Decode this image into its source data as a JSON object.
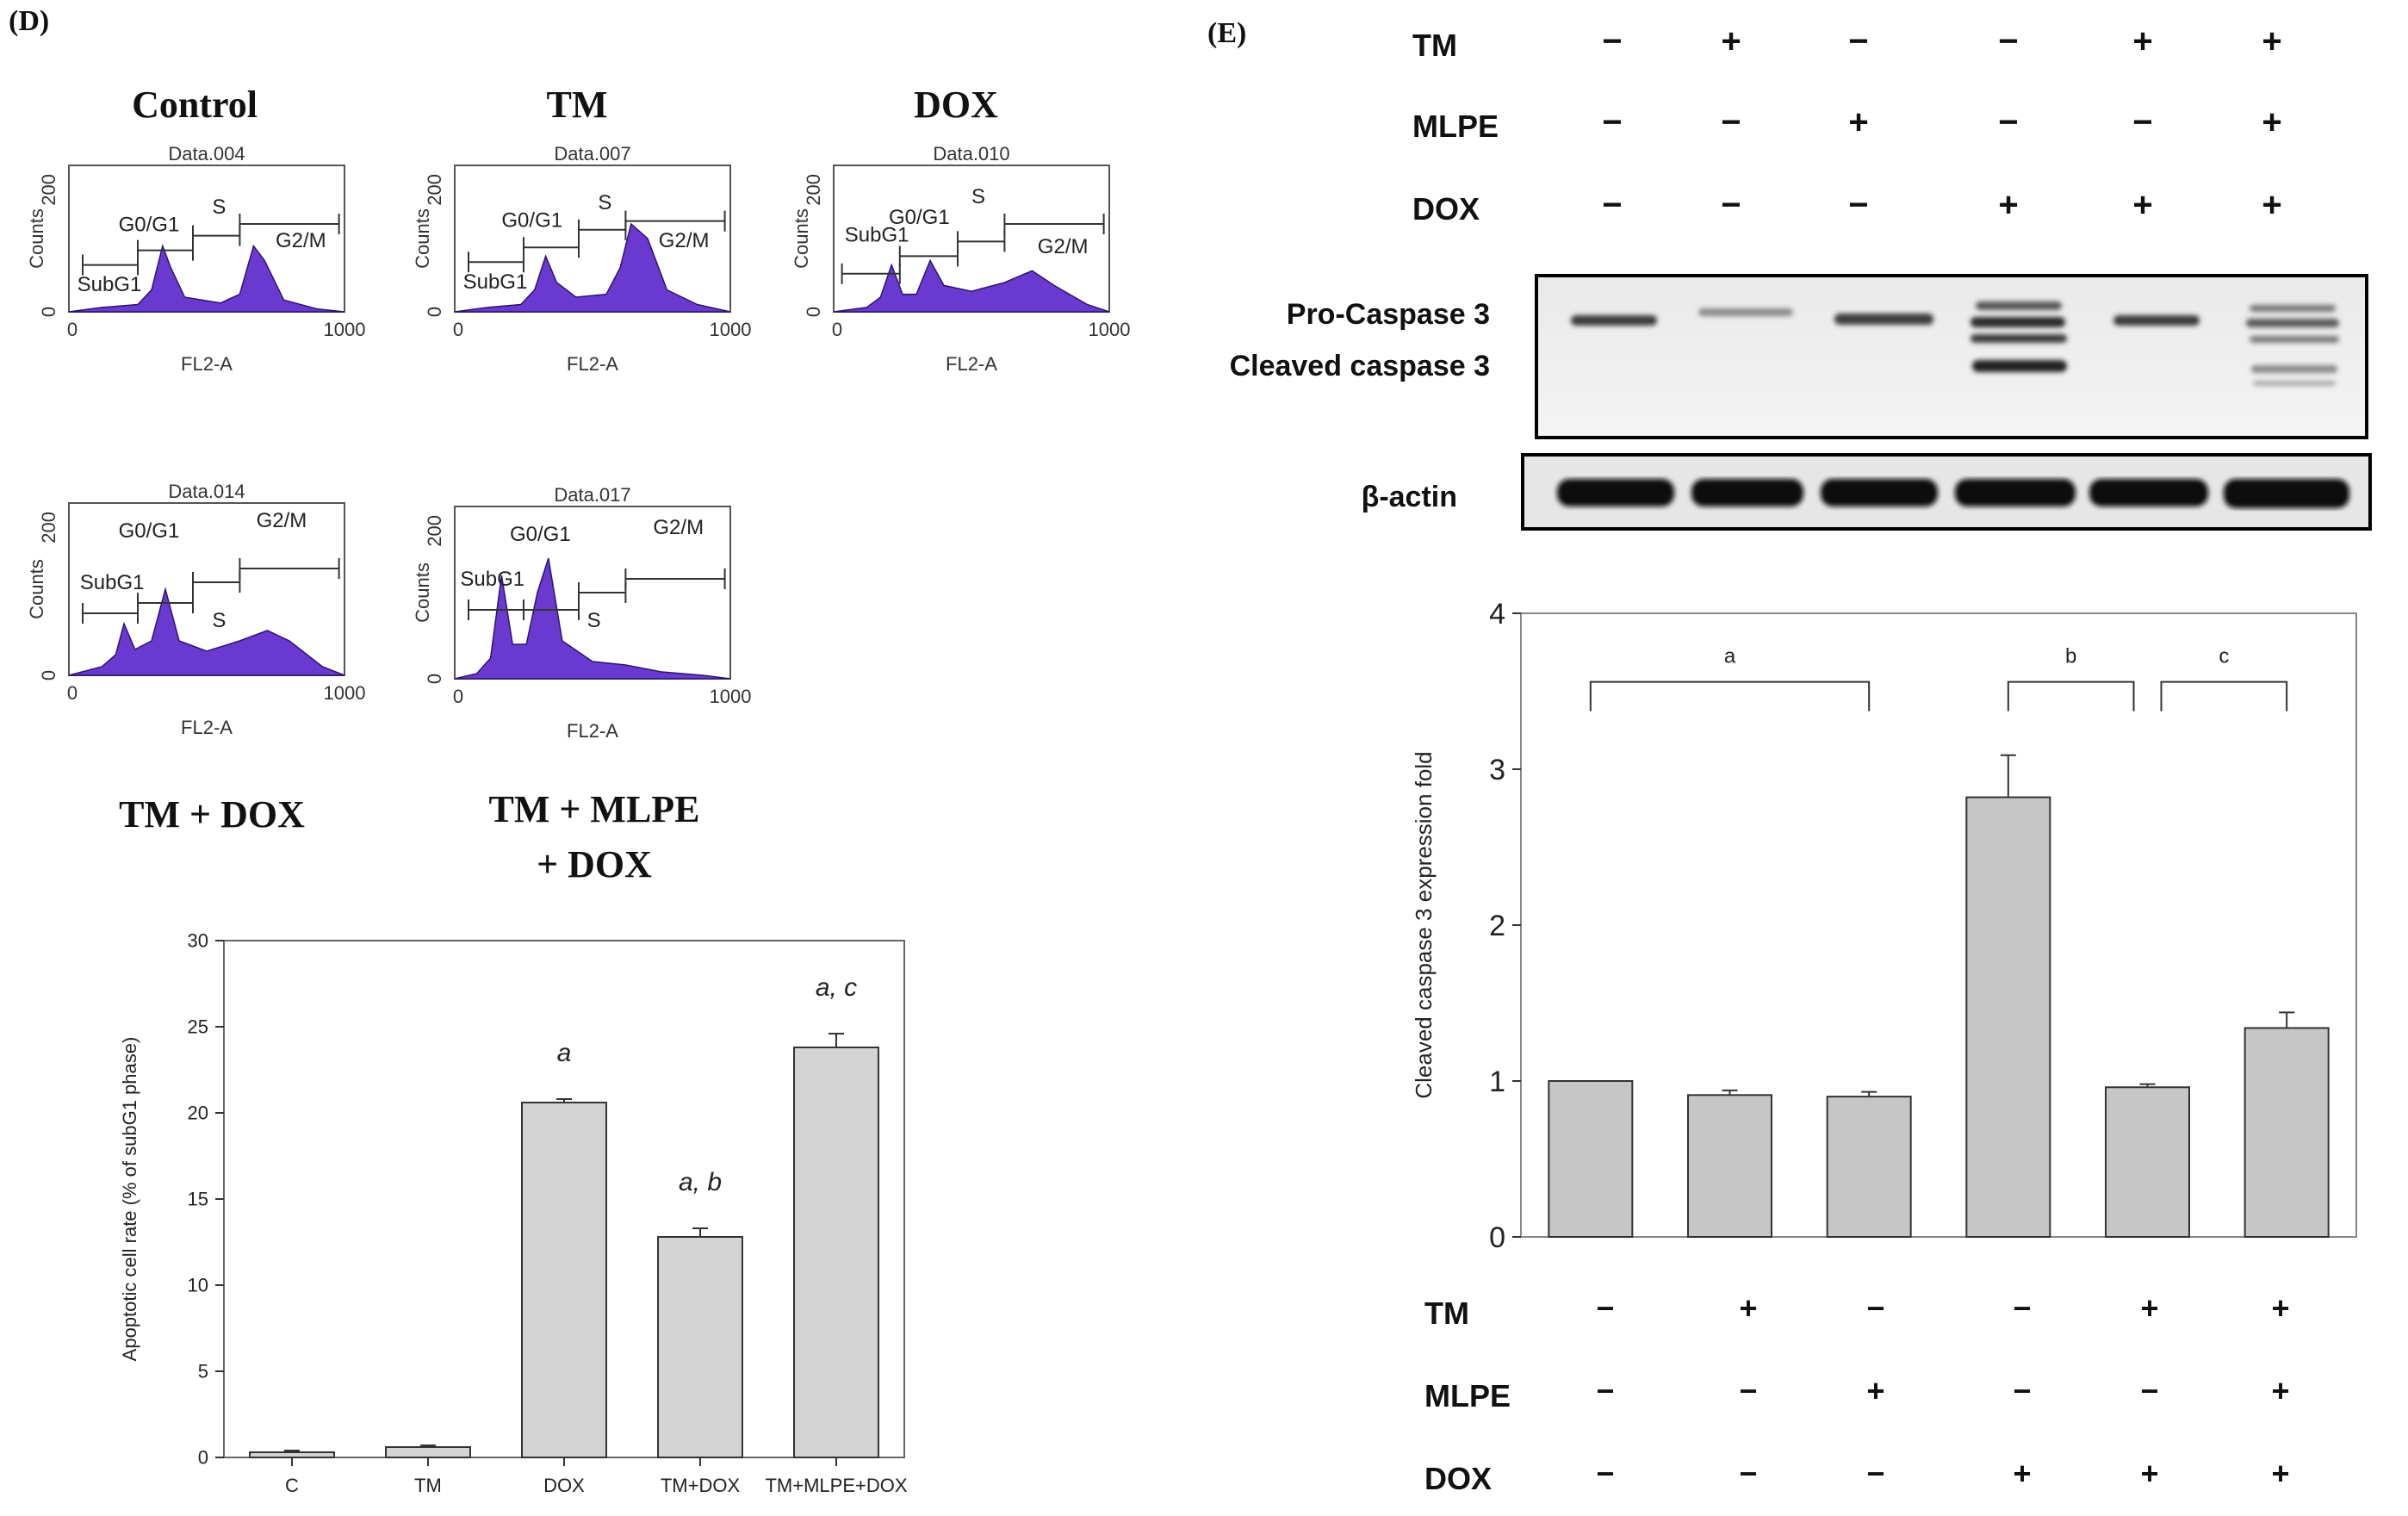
{
  "panel_d": {
    "label": "(D)",
    "histograms": [
      {
        "title": "Control",
        "data_name": "Data.004",
        "ymax": "200",
        "ymin": "0",
        "ylabel": "Counts",
        "xlabel": "FL2-A",
        "xmax": "1000",
        "xmin": "0",
        "gates": [
          "SubG1",
          "G0/G1",
          "S",
          "G2/M"
        ]
      },
      {
        "title": "TM",
        "data_name": "Data.007",
        "ymax": "200",
        "ymin": "0",
        "ylabel": "Counts",
        "xlabel": "FL2-A",
        "xmax": "1000",
        "xmin": "0",
        "gates": [
          "SubG1",
          "G0/G1",
          "S",
          "G2/M"
        ]
      },
      {
        "title": "DOX",
        "data_name": "Data.010",
        "ymax": "200",
        "ymin": "0",
        "ylabel": "Counts",
        "xlabel": "FL2-A",
        "xmax": "1000",
        "xmin": "0",
        "gates": [
          "SubG1",
          "G0/G1",
          "S",
          "G2/M"
        ]
      },
      {
        "title": "TM + DOX",
        "data_name": "Data.014",
        "ymax": "200",
        "ymin": "0",
        "ylabel": "Counts",
        "xlabel": "FL2-A",
        "xmax": "1000",
        "xmin": "0",
        "gates": [
          "SubG1",
          "G0/G1",
          "S",
          "G2/M"
        ]
      },
      {
        "title_line1": "TM + MLPE",
        "title_line2": "+ DOX",
        "data_name": "Data.017",
        "ymax": "200",
        "ymin": "0",
        "ylabel": "Counts",
        "xlabel": "FL2-A",
        "xmax": "1000",
        "xmin": "0",
        "gates": [
          "SubG1",
          "G0/G1",
          "S",
          "G2/M"
        ]
      }
    ]
  },
  "panel_e": {
    "label": "(E)",
    "treatment_rows": [
      {
        "name": "TM",
        "signs": [
          "−",
          "+",
          "−",
          "−",
          "+",
          "+"
        ]
      },
      {
        "name": "MLPE",
        "signs": [
          "−",
          "−",
          "+",
          "−",
          "−",
          "+"
        ]
      },
      {
        "name": "DOX",
        "signs": [
          "−",
          "−",
          "−",
          "+",
          "+",
          "+"
        ]
      }
    ],
    "blot_labels": {
      "pro": "Pro-Caspase 3",
      "cleaved": "Cleaved caspase 3",
      "actin": "β-actin"
    }
  },
  "chart_data": [
    {
      "id": "apoptosis",
      "type": "bar",
      "categories": [
        "C",
        "TM",
        "DOX",
        "TM+DOX",
        "TM+MLPE+DOX"
      ],
      "values": [
        0.3,
        0.6,
        20.6,
        12.8,
        23.8
      ],
      "errors": [
        0.1,
        0.1,
        0.2,
        0.5,
        0.8
      ],
      "annotations": [
        "",
        "",
        "a",
        "a, b",
        "a, c"
      ],
      "ylabel": "Apoptotic cell rate (% of subG1 phase)",
      "xlabel": "",
      "ylim": [
        0,
        30
      ],
      "yticks": [
        "0",
        "5",
        "10",
        "15",
        "20",
        "25",
        "30"
      ],
      "bar_color": "#d4d4d4"
    },
    {
      "id": "caspase",
      "type": "bar",
      "categories": [
        "",
        "",
        "",
        "",
        "",
        ""
      ],
      "values": [
        1.0,
        0.91,
        0.9,
        2.82,
        0.96,
        1.34
      ],
      "errors": [
        0.0,
        0.03,
        0.03,
        0.27,
        0.02,
        0.1
      ],
      "brackets": [
        "a",
        "b",
        "c"
      ],
      "ylabel": "Cleaved caspase 3 expression fold",
      "xlabel": "",
      "ylim": [
        0,
        4
      ],
      "yticks": [
        "0",
        "1",
        "2",
        "3",
        "4"
      ],
      "bar_color": "#c6c6c6"
    }
  ]
}
